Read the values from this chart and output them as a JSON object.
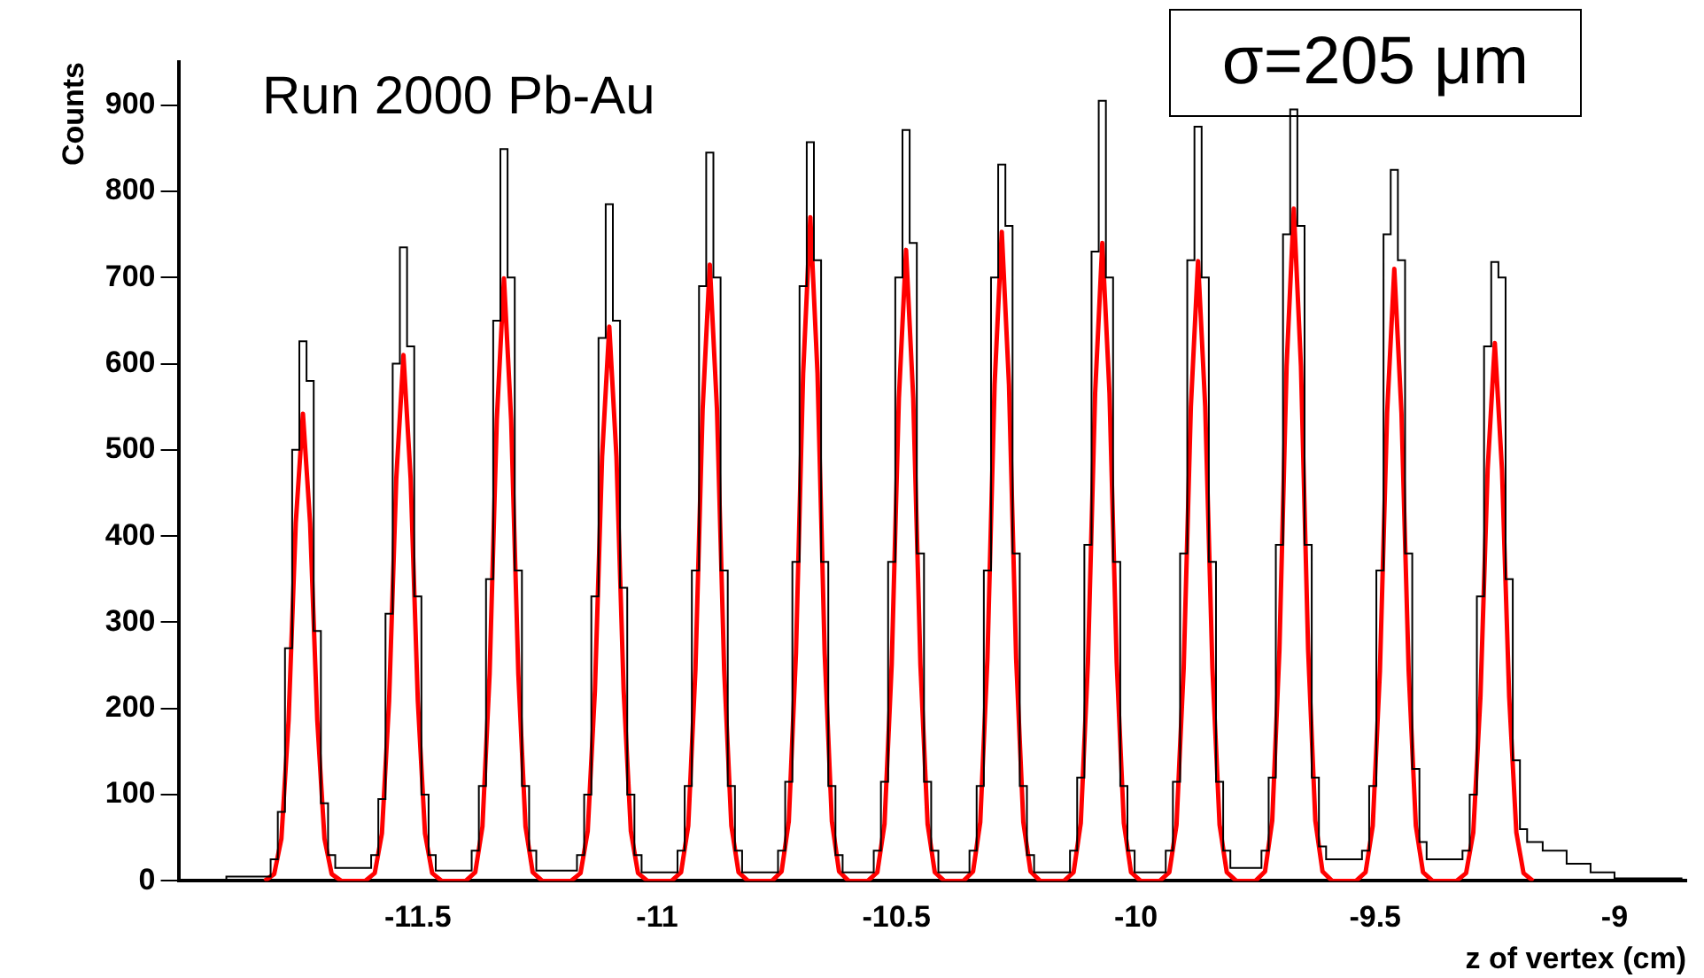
{
  "chart_data": {
    "type": "histogram",
    "title": "Run 2000 Pb-Au",
    "xlabel": "z of vertex (cm)",
    "ylabel": "Counts",
    "annotations": [
      "σ=205 μm"
    ],
    "xlim": [
      -12,
      -8.85
    ],
    "ylim": [
      0,
      950
    ],
    "xticks": [
      -11.5,
      -11,
      -10.5,
      -10,
      -9.5,
      -9
    ],
    "yticks": [
      0,
      100,
      200,
      300,
      400,
      500,
      600,
      700,
      800,
      900
    ],
    "grid": false,
    "marker": "none",
    "bins": [
      -11.9,
      -11.8075,
      -11.7925,
      -11.7775,
      -11.7625,
      -11.7475,
      -11.7325,
      -11.7175,
      -11.7025,
      -11.6875,
      -11.6725,
      -11.5975,
      -11.5825,
      -11.5675,
      -11.5525,
      -11.5375,
      -11.5225,
      -11.5075,
      -11.4925,
      -11.4775,
      -11.4625,
      -11.3875,
      -11.3725,
      -11.3575,
      -11.3425,
      -11.3275,
      -11.3125,
      -11.2975,
      -11.2825,
      -11.2675,
      -11.2525,
      -11.1675,
      -11.1525,
      -11.1375,
      -11.1225,
      -11.1075,
      -11.0925,
      -11.0775,
      -11.0625,
      -11.0475,
      -11.0325,
      -10.9575,
      -10.9425,
      -10.9275,
      -10.9125,
      -10.8975,
      -10.8825,
      -10.8675,
      -10.8525,
      -10.8375,
      -10.8225,
      -10.7475,
      -10.7325,
      -10.7175,
      -10.7025,
      -10.6875,
      -10.6725,
      -10.6575,
      -10.6425,
      -10.6275,
      -10.6125,
      -10.5475,
      -10.5325,
      -10.5175,
      -10.5025,
      -10.4875,
      -10.4725,
      -10.4575,
      -10.4425,
      -10.4275,
      -10.4125,
      -10.3475,
      -10.3325,
      -10.3175,
      -10.3025,
      -10.2875,
      -10.2725,
      -10.2575,
      -10.2425,
      -10.2275,
      -10.2125,
      -10.1375,
      -10.1225,
      -10.1075,
      -10.0925,
      -10.0775,
      -10.0625,
      -10.0475,
      -10.0325,
      -10.0175,
      -10.0025,
      -9.9375,
      -9.9225,
      -9.9075,
      -9.8925,
      -9.8775,
      -9.8625,
      -9.8475,
      -9.8325,
      -9.8175,
      -9.8025,
      -9.7375,
      -9.7225,
      -9.7075,
      -9.6925,
      -9.6775,
      -9.6625,
      -9.6475,
      -9.6325,
      -9.6175,
      -9.6025,
      -9.5275,
      -9.5125,
      -9.4975,
      -9.4825,
      -9.4675,
      -9.4525,
      -9.4375,
      -9.4225,
      -9.4075,
      -9.3925,
      -9.3175,
      -9.3025,
      -9.2875,
      -9.2725,
      -9.2575,
      -9.2425,
      -9.2275,
      -9.2125,
      -9.1975,
      -9.1825,
      -9.15,
      -9.1,
      -9.05,
      -9.0,
      -8.86
    ],
    "series": [
      {
        "type": "histogram",
        "color": "#000000",
        "values": [
          5,
          25,
          80,
          270,
          500,
          626,
          580,
          290,
          90,
          30,
          15,
          30,
          95,
          310,
          600,
          735,
          620,
          330,
          100,
          30,
          12,
          35,
          110,
          350,
          650,
          849,
          700,
          360,
          110,
          35,
          12,
          30,
          100,
          330,
          630,
          785,
          650,
          340,
          100,
          30,
          10,
          35,
          110,
          360,
          690,
          845,
          700,
          360,
          110,
          35,
          10,
          35,
          115,
          370,
          690,
          857,
          720,
          370,
          110,
          30,
          10,
          35,
          115,
          370,
          700,
          871,
          740,
          380,
          115,
          35,
          10,
          35,
          110,
          360,
          700,
          831,
          760,
          380,
          110,
          30,
          10,
          35,
          120,
          390,
          730,
          905,
          700,
          370,
          110,
          35,
          10,
          35,
          115,
          380,
          720,
          875,
          700,
          370,
          115,
          35,
          15,
          35,
          120,
          390,
          750,
          895,
          760,
          390,
          120,
          40,
          25,
          35,
          110,
          360,
          750,
          825,
          720,
          380,
          130,
          45,
          25,
          35,
          100,
          330,
          620,
          718,
          700,
          350,
          140,
          60,
          45,
          35,
          20,
          10,
          3
        ]
      },
      {
        "type": "line",
        "color": "#ff0000",
        "x": [
          -11.82,
          -11.8,
          -11.785,
          -11.77,
          -11.755,
          -11.74,
          -11.725,
          -11.71,
          -11.695,
          -11.68,
          -11.66,
          -11.61,
          -11.59,
          -11.575,
          -11.56,
          -11.545,
          -11.53,
          -11.515,
          -11.5,
          -11.485,
          -11.47,
          -11.45,
          -11.4,
          -11.38,
          -11.365,
          -11.35,
          -11.335,
          -11.32,
          -11.305,
          -11.29,
          -11.275,
          -11.26,
          -11.24,
          -11.18,
          -11.16,
          -11.145,
          -11.13,
          -11.115,
          -11.1,
          -11.085,
          -11.07,
          -11.055,
          -11.04,
          -11.02,
          -10.97,
          -10.95,
          -10.935,
          -10.92,
          -10.905,
          -10.89,
          -10.875,
          -10.86,
          -10.845,
          -10.83,
          -10.81,
          -10.76,
          -10.74,
          -10.725,
          -10.71,
          -10.695,
          -10.68,
          -10.665,
          -10.65,
          -10.635,
          -10.62,
          -10.6,
          -10.56,
          -10.54,
          -10.525,
          -10.51,
          -10.495,
          -10.48,
          -10.465,
          -10.45,
          -10.435,
          -10.42,
          -10.4,
          -10.36,
          -10.34,
          -10.325,
          -10.31,
          -10.295,
          -10.28,
          -10.265,
          -10.25,
          -10.235,
          -10.22,
          -10.2,
          -10.15,
          -10.13,
          -10.115,
          -10.1,
          -10.085,
          -10.07,
          -10.055,
          -10.04,
          -10.025,
          -10.01,
          -9.99,
          -9.95,
          -9.93,
          -9.915,
          -9.9,
          -9.885,
          -9.87,
          -9.855,
          -9.84,
          -9.825,
          -9.81,
          -9.79,
          -9.75,
          -9.73,
          -9.715,
          -9.7,
          -9.685,
          -9.67,
          -9.655,
          -9.64,
          -9.625,
          -9.61,
          -9.59,
          -9.54,
          -9.52,
          -9.505,
          -9.49,
          -9.475,
          -9.46,
          -9.445,
          -9.43,
          -9.415,
          -9.4,
          -9.38,
          -9.33,
          -9.31,
          -9.295,
          -9.28,
          -9.265,
          -9.25,
          -9.235,
          -9.22,
          -9.205,
          -9.19,
          -9.17
        ],
        "values": [
          0,
          8,
          49,
          186,
          415,
          542,
          415,
          186,
          49,
          8,
          0,
          0,
          9,
          55,
          209,
          467,
          610,
          467,
          209,
          55,
          9,
          0,
          0,
          10,
          63,
          240,
          535,
          699,
          535,
          240,
          63,
          10,
          0,
          0,
          9,
          58,
          221,
          492,
          643,
          492,
          221,
          58,
          9,
          0,
          0,
          10,
          64,
          245,
          547,
          715,
          547,
          245,
          64,
          10,
          0,
          0,
          11,
          69,
          264,
          589,
          770,
          589,
          264,
          69,
          11,
          0,
          0,
          10,
          66,
          251,
          560,
          732,
          560,
          251,
          66,
          10,
          0,
          0,
          11,
          68,
          258,
          576,
          753,
          576,
          258,
          68,
          11,
          0,
          0,
          10,
          67,
          254,
          566,
          740,
          566,
          254,
          67,
          10,
          0,
          0,
          10,
          65,
          247,
          550,
          719,
          550,
          247,
          65,
          10,
          0,
          0,
          11,
          70,
          268,
          597,
          780,
          597,
          268,
          70,
          11,
          0,
          0,
          10,
          64,
          244,
          543,
          710,
          543,
          244,
          64,
          10,
          0,
          0,
          9,
          56,
          214,
          477,
          624,
          477,
          214,
          56,
          9,
          0
        ]
      }
    ]
  }
}
